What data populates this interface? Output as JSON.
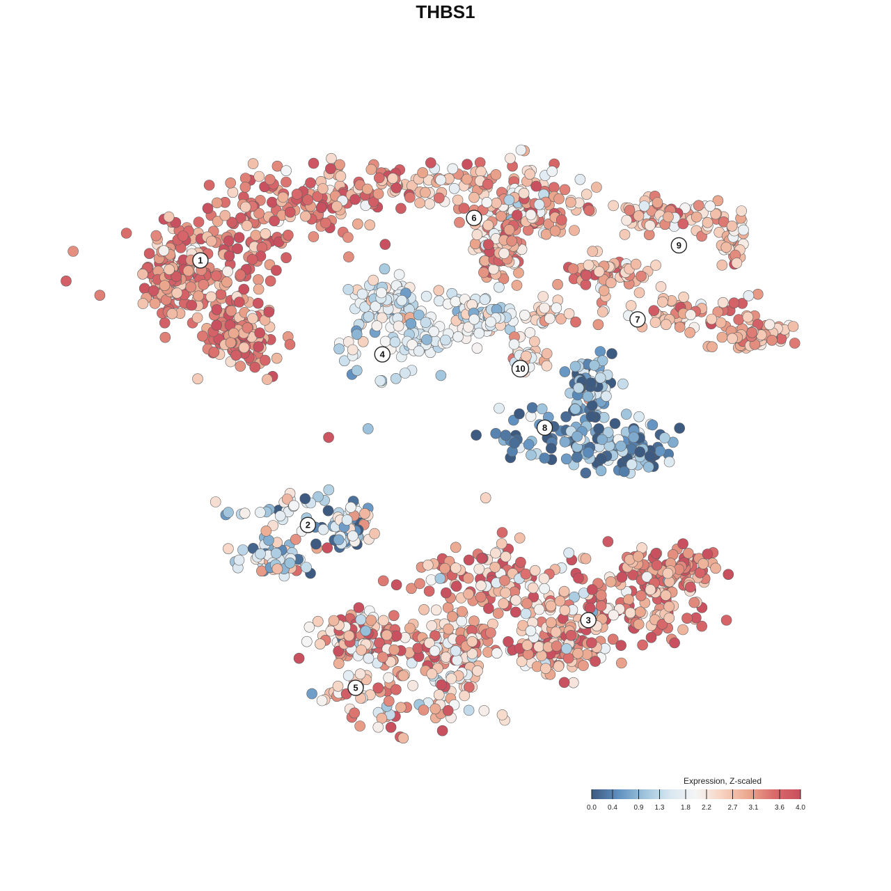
{
  "chart_data": {
    "type": "scatter",
    "title": "THBS1",
    "xlabel": "",
    "ylabel": "",
    "grid": false,
    "legend": {
      "title": "Expression, Z-scaled",
      "placement": "bottom-right",
      "range": [
        0.0,
        4.0
      ],
      "ticks": [
        0.0,
        0.4,
        0.9,
        1.3,
        1.8,
        2.2,
        2.7,
        3.1,
        3.6,
        4.0
      ],
      "tick_labels": [
        "0.0",
        "0.4",
        "0.9",
        "1.3",
        "1.8",
        "2.2",
        "2.7",
        "3.1",
        "3.6",
        "4.0"
      ],
      "colors": [
        "#3d5a80",
        "#5e8fbf",
        "#9dc3dc",
        "#d8e7f1",
        "#f5f5f5",
        "#f7d2c0",
        "#eba88f",
        "#d96a6a",
        "#c9505f"
      ]
    },
    "x_range": [
      -10,
      10
    ],
    "y_range": [
      -10,
      10
    ],
    "clusters": [
      {
        "label": "1",
        "x": -6.52,
        "y": 5.11,
        "mean_expression": 3.3
      },
      {
        "label": "2",
        "x": -3.66,
        "y": -1.93,
        "mean_expression": 1.3
      },
      {
        "label": "3",
        "x": 3.8,
        "y": -4.46,
        "mean_expression": 3.1
      },
      {
        "label": "4",
        "x": -1.68,
        "y": 2.61,
        "mean_expression": 1.7
      },
      {
        "label": "5",
        "x": -2.39,
        "y": -6.26,
        "mean_expression": 2.8
      },
      {
        "label": "6",
        "x": 0.76,
        "y": 6.24,
        "mean_expression": 2.8
      },
      {
        "label": "7",
        "x": 5.11,
        "y": 3.54,
        "mean_expression": 2.9
      },
      {
        "label": "8",
        "x": 2.64,
        "y": 0.66,
        "mean_expression": 0.6
      },
      {
        "label": "9",
        "x": 6.21,
        "y": 5.51,
        "mean_expression": 2.7
      },
      {
        "label": "10",
        "x": 1.99,
        "y": 2.23,
        "mean_expression": 2.3
      }
    ],
    "outliers": [
      {
        "x": -3.11,
        "y": 0.4,
        "expression": 3.9
      },
      {
        "x": -2.06,
        "y": 0.63,
        "expression": 1.0
      }
    ]
  }
}
